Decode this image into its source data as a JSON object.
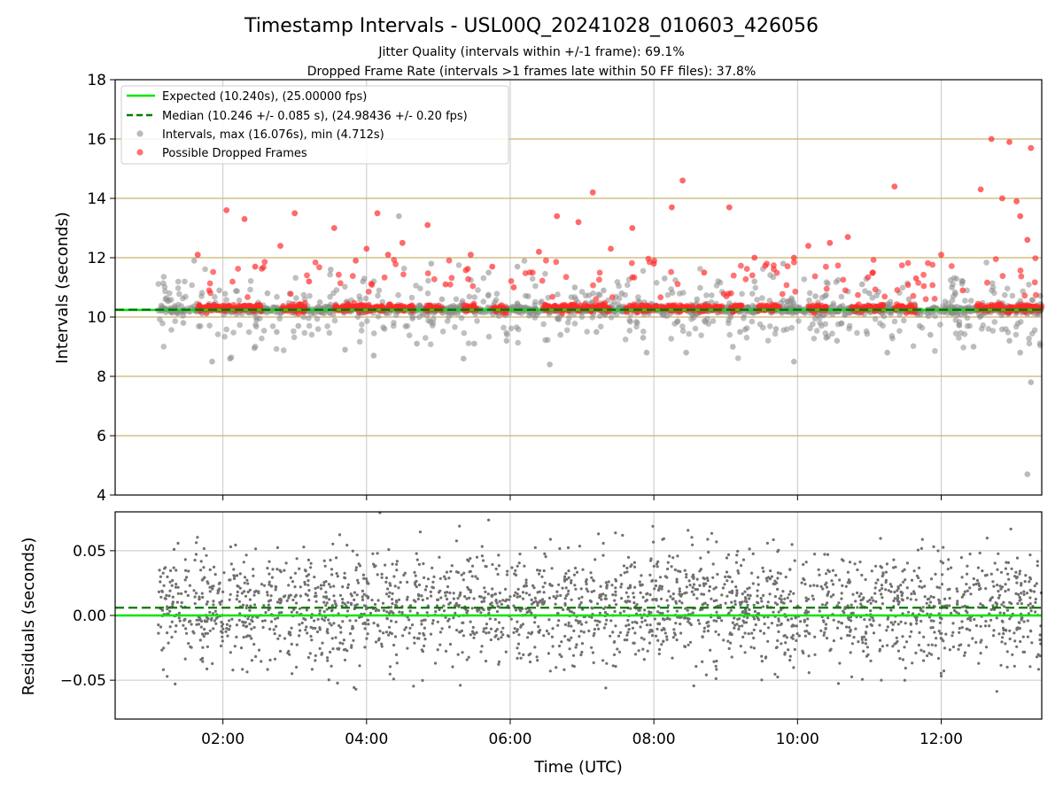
{
  "chart_data": [
    {
      "type": "scatter",
      "title": "Timestamp Intervals - USL00Q_20241028_010603_426056",
      "subtitle_lines": [
        "Jitter Quality (intervals within +/-1 frame): 69.1%",
        "Dropped Frame Rate (intervals >1 frames late within 50 FF files): 37.8%"
      ],
      "xlabel": "",
      "ylabel": "Intervals (seconds)",
      "xlim_hours": [
        0.5,
        13.4
      ],
      "ylim": [
        4,
        18
      ],
      "yticks": [
        4,
        6,
        8,
        10,
        12,
        14,
        16,
        18
      ],
      "ytick_labels": [
        "4",
        "6",
        "8",
        "10",
        "12",
        "14",
        "16",
        "18"
      ],
      "xticks_hours": [
        2,
        4,
        6,
        8,
        10,
        12
      ],
      "yref_lines": [
        6,
        8,
        10,
        12,
        14,
        16
      ],
      "grid": true,
      "legend_position": "top-left",
      "legend": [
        "Expected (10.240s), (25.00000 fps)",
        "Median (10.246 +/- 0.085 s), (24.98436 +/- 0.20 fps)",
        "Intervals, max (16.076s), min (4.712s)",
        "Possible Dropped Frames"
      ],
      "expected_interval": 10.24,
      "median_interval": 10.246,
      "max_interval": 16.076,
      "min_interval": 4.712,
      "colors": {
        "expected": "#00e600",
        "median": "#007a00",
        "intervals": "#8c8c8c",
        "dropped": "#ff2a2a",
        "reference": "#c9b56e",
        "grid": "#c8c8c8"
      },
      "series": [
        {
          "name": "Intervals, max (16.076s), min (4.712s)",
          "x": [
            1.2,
            1.45,
            1.85,
            1.95,
            2.45,
            2.62,
            3.05,
            3.35,
            3.7,
            3.95,
            4.25,
            4.45,
            4.7,
            5.05,
            5.35,
            5.7,
            5.95,
            6.25,
            6.55,
            6.9,
            7.2,
            7.55,
            7.85,
            8.15,
            8.45,
            8.8,
            9.1,
            9.4,
            9.7,
            9.95,
            10.25,
            10.55,
            10.9,
            11.25,
            11.55,
            11.85,
            12.15,
            12.45,
            12.8,
            13.1,
            13.2,
            1.6,
            2.1,
            2.75,
            3.5,
            4.1,
            4.9,
            5.5,
            6.1,
            6.7,
            7.3,
            7.9,
            8.6,
            9.2,
            9.8,
            10.4,
            11.0,
            11.7,
            12.3,
            12.95,
            13.25
          ],
          "y": [
            10.6,
            9.8,
            8.5,
            10.9,
            9.0,
            10.8,
            9.7,
            10.5,
            8.9,
            11.2,
            9.6,
            13.4,
            9.1,
            10.6,
            8.6,
            11.5,
            9.2,
            10.7,
            8.4,
            11.0,
            9.5,
            10.8,
            9.3,
            11.3,
            8.8,
            10.5,
            9.0,
            11.2,
            9.6,
            8.5,
            10.7,
            9.2,
            11.1,
            8.8,
            10.6,
            9.4,
            11.0,
            9.0,
            10.5,
            8.8,
            4.7,
            11.9,
            8.6,
            9.5,
            11.6,
            8.7,
            11.8,
            9.1,
            11.7,
            9.4,
            10.9,
            8.8,
            10.6,
            9.5,
            11.8,
            9.3,
            10.8,
            9.7,
            11.2,
            9.2,
            7.8
          ]
        },
        {
          "name": "Possible Dropped Frames",
          "x": [
            1.65,
            2.05,
            2.3,
            2.45,
            2.8,
            3.0,
            3.2,
            3.55,
            3.85,
            4.0,
            4.15,
            4.3,
            4.5,
            4.85,
            5.1,
            5.45,
            5.75,
            6.05,
            6.4,
            6.65,
            6.95,
            7.15,
            7.4,
            7.7,
            8.0,
            8.25,
            8.4,
            8.7,
            9.05,
            9.4,
            9.95,
            10.15,
            10.45,
            10.7,
            11.05,
            11.35,
            11.65,
            12.0,
            12.3,
            12.55,
            12.7,
            12.85,
            12.95,
            13.05,
            13.1,
            13.2,
            13.25
          ],
          "y": [
            12.1,
            13.6,
            13.3,
            11.7,
            12.4,
            13.5,
            11.2,
            13.0,
            11.9,
            12.3,
            13.5,
            12.1,
            12.5,
            13.1,
            11.1,
            12.1,
            11.7,
            11.0,
            12.2,
            13.4,
            13.2,
            14.2,
            12.3,
            13.0,
            11.8,
            13.7,
            14.6,
            11.5,
            13.7,
            12.0,
            12.0,
            12.4,
            12.5,
            12.7,
            11.5,
            14.4,
            11.3,
            12.1,
            10.9,
            14.3,
            16.0,
            14.0,
            15.9,
            13.9,
            13.4,
            12.6,
            15.7
          ]
        }
      ]
    },
    {
      "type": "scatter",
      "title": "",
      "xlabel": "Time (UTC)",
      "ylabel": "Residuals (seconds)",
      "xlim_hours": [
        0.5,
        13.4
      ],
      "ylim": [
        -0.08,
        0.08
      ],
      "yticks": [
        -0.05,
        0.0,
        0.05
      ],
      "ytick_labels": [
        "−0.05",
        "0.00",
        "0.05"
      ],
      "xticks_hours": [
        2,
        4,
        6,
        8,
        10,
        12
      ],
      "xtick_labels": [
        "02:00",
        "04:00",
        "06:00",
        "08:00",
        "10:00",
        "12:00"
      ],
      "grid": true,
      "expected_residual": 0.0,
      "median_residual": 0.006,
      "residual_spread_sd": 0.022,
      "colors": {
        "expected": "#00e600",
        "median": "#007a00",
        "points": "#707070",
        "grid": "#c8c8c8"
      }
    }
  ]
}
